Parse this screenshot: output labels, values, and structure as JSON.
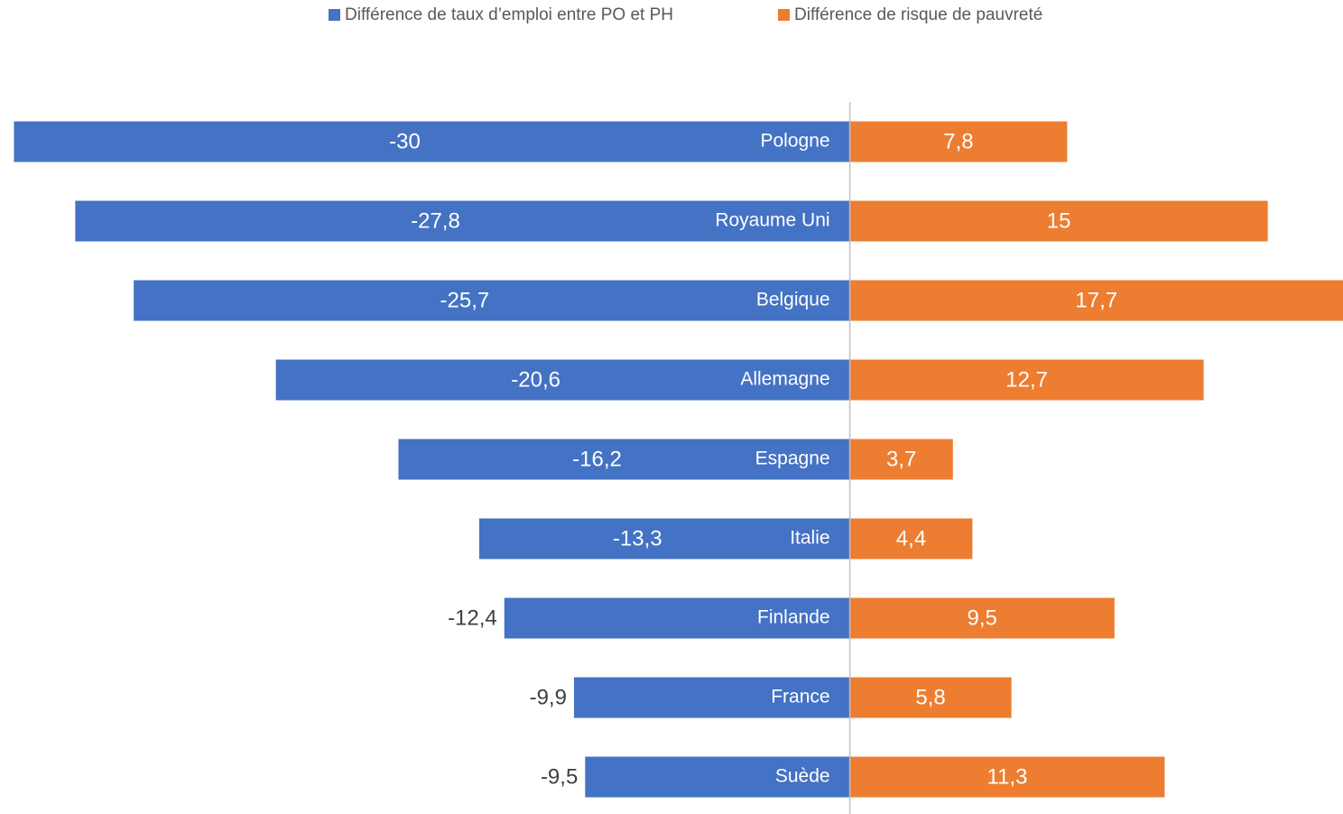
{
  "chart_data": {
    "type": "bar",
    "orientation": "horizontal",
    "categories": [
      "Pologne",
      "Royaume Uni",
      "Belgique",
      "Allemagne",
      "Espagne",
      "Italie",
      "Finlande",
      "France",
      "Suède"
    ],
    "series": [
      {
        "name": "Différence de taux d’emploi entre PO et PH",
        "color": "#4472c4",
        "values": [
          -30,
          -27.8,
          -25.7,
          -20.6,
          -16.2,
          -13.3,
          -12.4,
          -9.9,
          -9.5
        ],
        "value_labels": [
          "-30",
          "-27,8",
          "-25,7",
          "-20,6",
          "-16,2",
          "-13,3",
          "-12,4",
          "-9,9",
          "-9,5"
        ]
      },
      {
        "name": "Différence de risque de pauvreté",
        "color": "#ed7d31",
        "values": [
          7.8,
          15,
          17.7,
          12.7,
          3.7,
          4.4,
          9.5,
          5.8,
          11.3
        ],
        "value_labels": [
          "7,8",
          "15",
          "17,7",
          "12,7",
          "3,7",
          "4,4",
          "9,5",
          "5,8",
          "11,3"
        ]
      }
    ],
    "xlim": [
      -30.5,
      17.7
    ],
    "legend": "top"
  }
}
